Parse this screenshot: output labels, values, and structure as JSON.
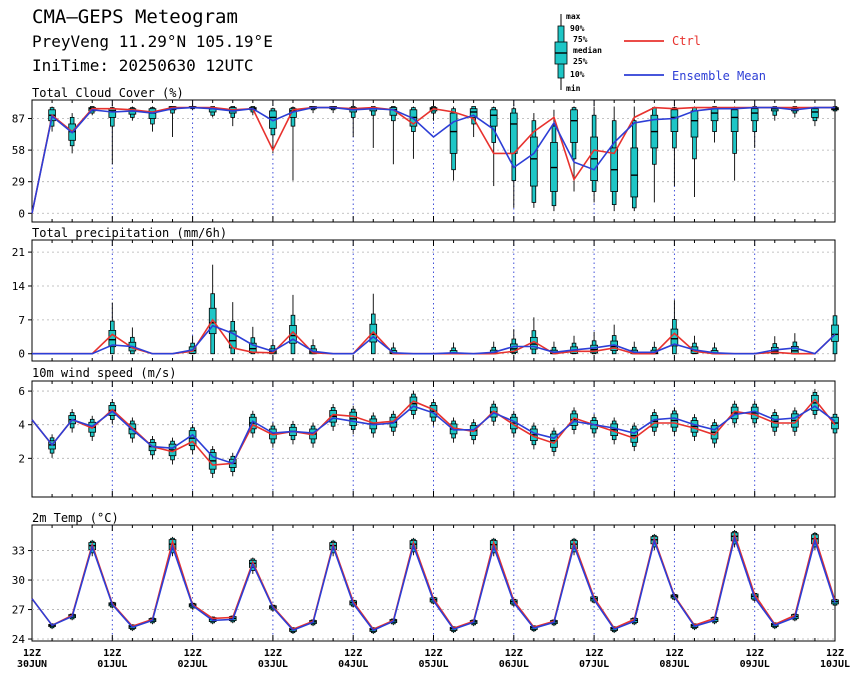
{
  "header": {
    "title": "CMA–GEPS Meteogram",
    "station": "PreyVeng 11.29°N 105.19°E",
    "init_time": "IniTime: 20250630 12UTC"
  },
  "legend": {
    "box_labels": [
      "max",
      "90%",
      "75%",
      "median",
      "25%",
      "10%",
      "min"
    ],
    "ctrl_label": "Ctrl",
    "mean_label": "Ensemble Mean",
    "ctrl_color": "#e8322e",
    "mean_color": "#2d3ed6",
    "box_color": "#1ec6c6"
  },
  "x_axis": {
    "tick_top": [
      "12Z",
      "12Z",
      "12Z",
      "12Z",
      "12Z",
      "12Z",
      "12Z",
      "12Z",
      "12Z",
      "12Z",
      "12Z"
    ],
    "tick_bottom": [
      "30JUN",
      "01JUL",
      "02JUL",
      "03JUL",
      "04JUL",
      "05JUL",
      "06JUL",
      "07JUL",
      "08JUL",
      "09JUL",
      "10JUL"
    ]
  },
  "chart_data": [
    {
      "type": "box",
      "title": "Total Cloud Cover (%)",
      "ylim": [
        -8,
        104
      ],
      "yticks": [
        0,
        29,
        58,
        87
      ],
      "grid": true,
      "x_hours": [
        0,
        6,
        12,
        18,
        24,
        30,
        36,
        42,
        48,
        54,
        60,
        66,
        72,
        78,
        84,
        90,
        96,
        102,
        108,
        114,
        120,
        126,
        132,
        138,
        144,
        150,
        156,
        162,
        168,
        174,
        180,
        186,
        192,
        198,
        204,
        210,
        216,
        222,
        228,
        234,
        240
      ],
      "ctrl": [
        0,
        90,
        75,
        96,
        96,
        95,
        93,
        97,
        97,
        97,
        95,
        96,
        58,
        95,
        97,
        97,
        96,
        97,
        95,
        82,
        96,
        93,
        87,
        55,
        55,
        75,
        88,
        31,
        58,
        55,
        88,
        97,
        96,
        97,
        97,
        97,
        97,
        97,
        97,
        97,
        97
      ],
      "mean": [
        0,
        89,
        74,
        95,
        93,
        94,
        92,
        96,
        97,
        96,
        94,
        96,
        85,
        93,
        97,
        97,
        95,
        96,
        95,
        87,
        70,
        84,
        90,
        77,
        42,
        55,
        83,
        47,
        40,
        65,
        83,
        86,
        87,
        94,
        96,
        96,
        97,
        97,
        95,
        97,
        97
      ],
      "boxes": [
        null,
        {
          "mn": 75,
          "p10": 80,
          "p25": 85,
          "med": 90,
          "p75": 95,
          "p90": 97,
          "mx": 98
        },
        {
          "mn": 55,
          "p10": 62,
          "p25": 67,
          "med": 75,
          "p75": 82,
          "p90": 88,
          "mx": 92
        },
        {
          "mn": 90,
          "p10": 92,
          "p25": 94,
          "med": 96,
          "p75": 97,
          "p90": 98,
          "mx": 98
        },
        {
          "mn": 45,
          "p10": 80,
          "p25": 88,
          "med": 94,
          "p75": 96,
          "p90": 97,
          "mx": 98
        },
        {
          "mn": 85,
          "p10": 88,
          "p25": 91,
          "med": 94,
          "p75": 96,
          "p90": 97,
          "mx": 98
        },
        {
          "mn": 75,
          "p10": 82,
          "p25": 87,
          "med": 92,
          "p75": 96,
          "p90": 97,
          "mx": 98
        },
        {
          "mn": 70,
          "p10": 92,
          "p25": 95,
          "med": 97,
          "p75": 98,
          "p90": 98,
          "mx": 98
        },
        {
          "mn": 95,
          "p10": 96,
          "p25": 97,
          "med": 97,
          "p75": 98,
          "p90": 98,
          "mx": 98
        },
        {
          "mn": 88,
          "p10": 90,
          "p25": 93,
          "med": 96,
          "p75": 97,
          "p90": 98,
          "mx": 98
        },
        {
          "mn": 80,
          "p10": 88,
          "p25": 92,
          "med": 94,
          "p75": 97,
          "p90": 98,
          "mx": 98
        },
        {
          "mn": 90,
          "p10": 93,
          "p25": 95,
          "med": 96,
          "p75": 97,
          "p90": 98,
          "mx": 98
        },
        {
          "mn": 55,
          "p10": 72,
          "p25": 78,
          "med": 88,
          "p75": 94,
          "p90": 96,
          "mx": 97
        },
        {
          "mn": 30,
          "p10": 80,
          "p25": 88,
          "med": 94,
          "p75": 96,
          "p90": 97,
          "mx": 98
        },
        {
          "mn": 92,
          "p10": 95,
          "p25": 96,
          "med": 97,
          "p75": 98,
          "p90": 98,
          "mx": 98
        },
        {
          "mn": 92,
          "p10": 95,
          "p25": 96,
          "med": 97,
          "p75": 98,
          "p90": 98,
          "mx": 98
        },
        {
          "mn": 70,
          "p10": 88,
          "p25": 93,
          "med": 96,
          "p75": 97,
          "p90": 98,
          "mx": 98
        },
        {
          "mn": 60,
          "p10": 90,
          "p25": 94,
          "med": 96,
          "p75": 97,
          "p90": 98,
          "mx": 98
        },
        {
          "mn": 45,
          "p10": 85,
          "p25": 90,
          "med": 95,
          "p75": 97,
          "p90": 98,
          "mx": 98
        },
        {
          "mn": 50,
          "p10": 75,
          "p25": 80,
          "med": 88,
          "p75": 95,
          "p90": 97,
          "mx": 98
        },
        {
          "mn": 85,
          "p10": 92,
          "p25": 94,
          "med": 96,
          "p75": 97,
          "p90": 98,
          "mx": 98
        },
        {
          "mn": 30,
          "p10": 40,
          "p25": 55,
          "med": 75,
          "p75": 92,
          "p90": 96,
          "mx": 98
        },
        {
          "mn": 70,
          "p10": 82,
          "p25": 88,
          "med": 93,
          "p75": 96,
          "p90": 98,
          "mx": 98
        },
        {
          "mn": 25,
          "p10": 65,
          "p25": 80,
          "med": 90,
          "p75": 95,
          "p90": 97,
          "mx": 98
        },
        {
          "mn": 5,
          "p10": 30,
          "p25": 55,
          "med": 82,
          "p75": 92,
          "p90": 96,
          "mx": 98
        },
        {
          "mn": 5,
          "p10": 10,
          "p25": 25,
          "med": 50,
          "p75": 70,
          "p90": 85,
          "mx": 92
        },
        {
          "mn": 2,
          "p10": 7,
          "p25": 20,
          "med": 42,
          "p75": 65,
          "p90": 80,
          "mx": 95
        },
        {
          "mn": 20,
          "p10": 50,
          "p25": 65,
          "med": 85,
          "p75": 95,
          "p90": 97,
          "mx": 98
        },
        {
          "mn": 10,
          "p10": 20,
          "p25": 30,
          "med": 50,
          "p75": 70,
          "p90": 90,
          "mx": 98
        },
        {
          "mn": 2,
          "p10": 8,
          "p25": 20,
          "med": 40,
          "p75": 60,
          "p90": 85,
          "mx": 98
        },
        {
          "mn": 2,
          "p10": 5,
          "p25": 15,
          "med": 35,
          "p75": 60,
          "p90": 85,
          "mx": 98
        },
        {
          "mn": 10,
          "p10": 45,
          "p25": 60,
          "med": 75,
          "p75": 90,
          "p90": 97,
          "mx": 98
        },
        {
          "mn": 25,
          "p10": 60,
          "p25": 75,
          "med": 88,
          "p75": 95,
          "p90": 97,
          "mx": 98
        },
        {
          "mn": 15,
          "p10": 50,
          "p25": 70,
          "med": 85,
          "p75": 94,
          "p90": 97,
          "mx": 98
        },
        {
          "mn": 65,
          "p10": 75,
          "p25": 85,
          "med": 92,
          "p75": 96,
          "p90": 98,
          "mx": 98
        },
        {
          "mn": 30,
          "p10": 55,
          "p25": 75,
          "med": 88,
          "p75": 95,
          "p90": 97,
          "mx": 98
        },
        {
          "mn": 60,
          "p10": 75,
          "p25": 85,
          "med": 92,
          "p75": 96,
          "p90": 98,
          "mx": 98
        },
        {
          "mn": 85,
          "p10": 90,
          "p25": 94,
          "med": 96,
          "p75": 97,
          "p90": 98,
          "mx": 98
        },
        {
          "mn": 88,
          "p10": 92,
          "p25": 94,
          "med": 96,
          "p75": 97,
          "p90": 98,
          "mx": 98
        },
        {
          "mn": 80,
          "p10": 85,
          "p25": 88,
          "med": 93,
          "p75": 96,
          "p90": 97,
          "mx": 98
        },
        {
          "mn": 92,
          "p10": 94,
          "p25": 95,
          "med": 96,
          "p75": 97,
          "p90": 98,
          "mx": 98
        }
      ]
    },
    {
      "type": "box",
      "title": "Total precipitation (mm/6h)",
      "ylim": [
        -1.5,
        23.5
      ],
      "yticks": [
        0,
        7,
        14,
        21
      ],
      "grid": true,
      "x_hours": [
        0,
        6,
        12,
        18,
        24,
        30,
        36,
        42,
        48,
        54,
        60,
        66,
        72,
        78,
        84,
        90,
        96,
        102,
        108,
        114,
        120,
        126,
        132,
        138,
        144,
        150,
        156,
        162,
        168,
        174,
        180,
        186,
        192,
        198,
        204,
        210,
        216,
        222,
        228,
        234,
        240
      ],
      "ctrl": [
        0,
        0,
        0,
        0,
        4,
        1.2,
        0,
        0,
        0.5,
        7,
        1.2,
        0.3,
        0.2,
        4.5,
        0.2,
        0,
        0,
        4.5,
        0,
        0,
        0,
        0,
        0,
        0,
        0.5,
        2.5,
        0,
        0.5,
        0.5,
        1.2,
        0,
        0,
        4.2,
        0.5,
        0,
        0,
        0,
        0.3,
        0,
        0,
        4
      ],
      "mean": [
        0,
        0,
        0,
        0,
        1.8,
        1.5,
        0,
        0,
        0.8,
        5.8,
        4.2,
        1.8,
        0.5,
        3,
        0.5,
        0,
        0,
        3.5,
        0.2,
        0,
        0,
        0.2,
        0,
        0.3,
        1.5,
        1.5,
        0.3,
        0.8,
        1.2,
        1.8,
        0.3,
        0.3,
        2,
        0.8,
        0.2,
        0,
        0,
        0.8,
        1.2,
        0,
        4
      ]
    },
    {
      "type": "box",
      "title": "10m wind speed (m/s)",
      "ylim": [
        -0.3,
        6.6
      ],
      "yticks": [
        2,
        4,
        6
      ],
      "grid": true,
      "x_hours": [
        0,
        6,
        12,
        18,
        24,
        30,
        36,
        42,
        48,
        54,
        60,
        66,
        72,
        78,
        84,
        90,
        96,
        102,
        108,
        114,
        120,
        126,
        132,
        138,
        144,
        150,
        156,
        162,
        168,
        174,
        180,
        186,
        192,
        198,
        204,
        210,
        216,
        222,
        228,
        234,
        240
      ],
      "ctrl": [
        4.3,
        2.8,
        4.3,
        3.8,
        4.9,
        3.8,
        2.7,
        2.4,
        3.0,
        1.6,
        1.7,
        4.0,
        3.4,
        3.6,
        3.4,
        4.6,
        4.5,
        4.1,
        4.2,
        5.4,
        4.9,
        3.8,
        3.6,
        4.8,
        4.0,
        3.3,
        2.9,
        4.4,
        4.0,
        3.6,
        3.2,
        4.1,
        4.1,
        3.8,
        3.4,
        4.8,
        4.6,
        4.1,
        4.1,
        5.5,
        4.0
      ],
      "mean": [
        4.3,
        2.8,
        4.3,
        3.9,
        4.8,
        3.7,
        2.7,
        2.6,
        3.4,
        2.1,
        1.7,
        4.2,
        3.5,
        3.6,
        3.5,
        4.4,
        4.2,
        4.0,
        4.1,
        5.1,
        4.7,
        3.7,
        3.7,
        4.7,
        4.2,
        3.5,
        3.2,
        4.2,
        4.0,
        3.8,
        3.5,
        4.3,
        4.4,
        4.0,
        3.7,
        4.6,
        4.8,
        4.3,
        4.4,
        5.1,
        4.2
      ]
    },
    {
      "type": "box",
      "title": "2m Temp (°C)",
      "ylim": [
        23.8,
        35.6
      ],
      "yticks": [
        24,
        27,
        30,
        33
      ],
      "grid": true,
      "x_hours": [
        0,
        6,
        12,
        18,
        24,
        30,
        36,
        42,
        48,
        54,
        60,
        66,
        72,
        78,
        84,
        90,
        96,
        102,
        108,
        114,
        120,
        126,
        132,
        138,
        144,
        150,
        156,
        162,
        168,
        174,
        180,
        186,
        192,
        198,
        204,
        210,
        216,
        222,
        228,
        234,
        240
      ],
      "ctrl": [
        28.1,
        25.4,
        26.4,
        33.6,
        27.6,
        25.3,
        26.0,
        33.9,
        27.5,
        26.1,
        26.2,
        31.8,
        27.3,
        25.0,
        25.8,
        33.6,
        27.8,
        25.0,
        25.9,
        33.8,
        28.1,
        25.1,
        25.8,
        33.8,
        27.9,
        25.2,
        25.8,
        33.8,
        28.2,
        25.1,
        26.0,
        34.2,
        28.4,
        25.4,
        26.1,
        34.6,
        28.5,
        25.5,
        26.4,
        34.4,
        27.9
      ],
      "mean": [
        28.1,
        25.4,
        26.3,
        33.4,
        27.5,
        25.2,
        25.9,
        33.4,
        27.4,
        25.9,
        26.0,
        31.6,
        27.2,
        24.9,
        25.7,
        33.4,
        27.6,
        24.9,
        25.8,
        33.5,
        27.9,
        25.0,
        25.7,
        33.4,
        27.7,
        25.1,
        25.7,
        33.5,
        28.0,
        25.0,
        25.8,
        34.0,
        28.3,
        25.3,
        25.9,
        34.3,
        28.2,
        25.4,
        26.2,
        34.0,
        27.7
      ]
    }
  ]
}
